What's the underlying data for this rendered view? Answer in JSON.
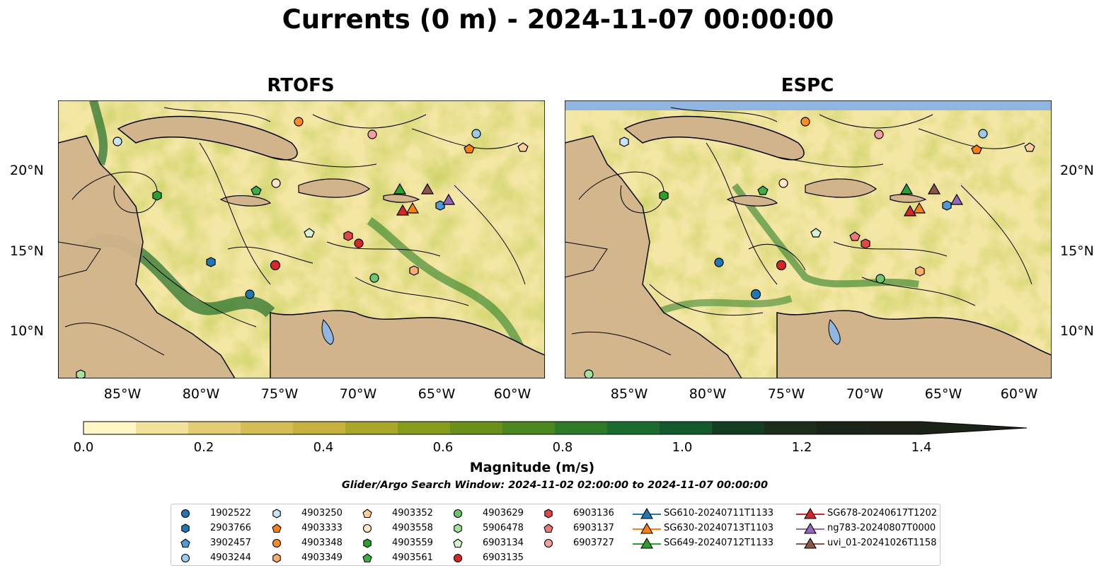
{
  "title": "Currents (0 m) - 2024-11-07 00:00:00",
  "panels": [
    {
      "title": "RTOFS"
    },
    {
      "title": "ESPC"
    }
  ],
  "axes": {
    "lat_ticks": [
      "20°N",
      "15°N",
      "10°N"
    ],
    "lon_ticks": [
      "85°W",
      "80°W",
      "75°W",
      "70°W",
      "65°W",
      "60°W"
    ]
  },
  "colorbar": {
    "label": "Magnitude (m/s)",
    "ticks": [
      "0.0",
      "0.2",
      "0.4",
      "0.6",
      "0.8",
      "1.0",
      "1.2",
      "1.4"
    ],
    "colors": [
      "#fff8c6",
      "#f1e199",
      "#e2cc74",
      "#d4bd57",
      "#c5b13e",
      "#a9a62a",
      "#879c1b",
      "#6a9019",
      "#4c861f",
      "#2f7a2a",
      "#1b6b2f",
      "#125a2b",
      "#143d22",
      "#1a2e1a",
      "#1c2418",
      "#1d2216"
    ]
  },
  "search_window": "Glider/Argo Search Window: 2024-11-02 02:00:00 to 2024-11-07 00:00:00",
  "legend": [
    {
      "label": "1902522",
      "marker": "circle",
      "color": "#1f77b4"
    },
    {
      "label": "2903766",
      "marker": "hexagon",
      "color": "#1f77b4"
    },
    {
      "label": "3902457",
      "marker": "pentagon",
      "color": "#4e9ad6"
    },
    {
      "label": "4903244",
      "marker": "circle",
      "color": "#9ecae9"
    },
    {
      "label": "4903250",
      "marker": "hexagon",
      "color": "#c6e3f7"
    },
    {
      "label": "4903333",
      "marker": "pentagon",
      "color": "#ff7f0e"
    },
    {
      "label": "4903348",
      "marker": "circle",
      "color": "#ff8c1a"
    },
    {
      "label": "4903349",
      "marker": "hexagon",
      "color": "#ffae6b"
    },
    {
      "label": "4903352",
      "marker": "pentagon",
      "color": "#ffcf99"
    },
    {
      "label": "4903558",
      "marker": "circle",
      "color": "#ffe4c8"
    },
    {
      "label": "4903559",
      "marker": "hexagon",
      "color": "#2ca02c"
    },
    {
      "label": "4903561",
      "marker": "pentagon",
      "color": "#3cb043"
    },
    {
      "label": "4903629",
      "marker": "circle",
      "color": "#6cc66c"
    },
    {
      "label": "5906478",
      "marker": "hexagon",
      "color": "#a6e3a1"
    },
    {
      "label": "6903134",
      "marker": "pentagon",
      "color": "#d4f5cf"
    },
    {
      "label": "6903135",
      "marker": "circle",
      "color": "#d62728"
    },
    {
      "label": "6903136",
      "marker": "hexagon",
      "color": "#e04848"
    },
    {
      "label": "6903137",
      "marker": "pentagon",
      "color": "#ee7777"
    },
    {
      "label": "6903727",
      "marker": "circle",
      "color": "#f4a0a0"
    },
    {
      "label": "SG610-20240711T1133",
      "marker": "triangle",
      "color": "#1f77b4"
    },
    {
      "label": "SG630-20240713T1103",
      "marker": "triangle",
      "color": "#ff7f0e"
    },
    {
      "label": "SG649-20240712T1133",
      "marker": "triangle",
      "color": "#2ca02c"
    },
    {
      "label": "SG678-20240617T1202",
      "marker": "triangle",
      "color": "#d62728"
    },
    {
      "label": "ng783-20240807T0000",
      "marker": "triangle",
      "color": "#9467bd"
    },
    {
      "label": "uvi_01-20241026T1158",
      "marker": "triangle",
      "color": "#8c564b"
    }
  ]
}
